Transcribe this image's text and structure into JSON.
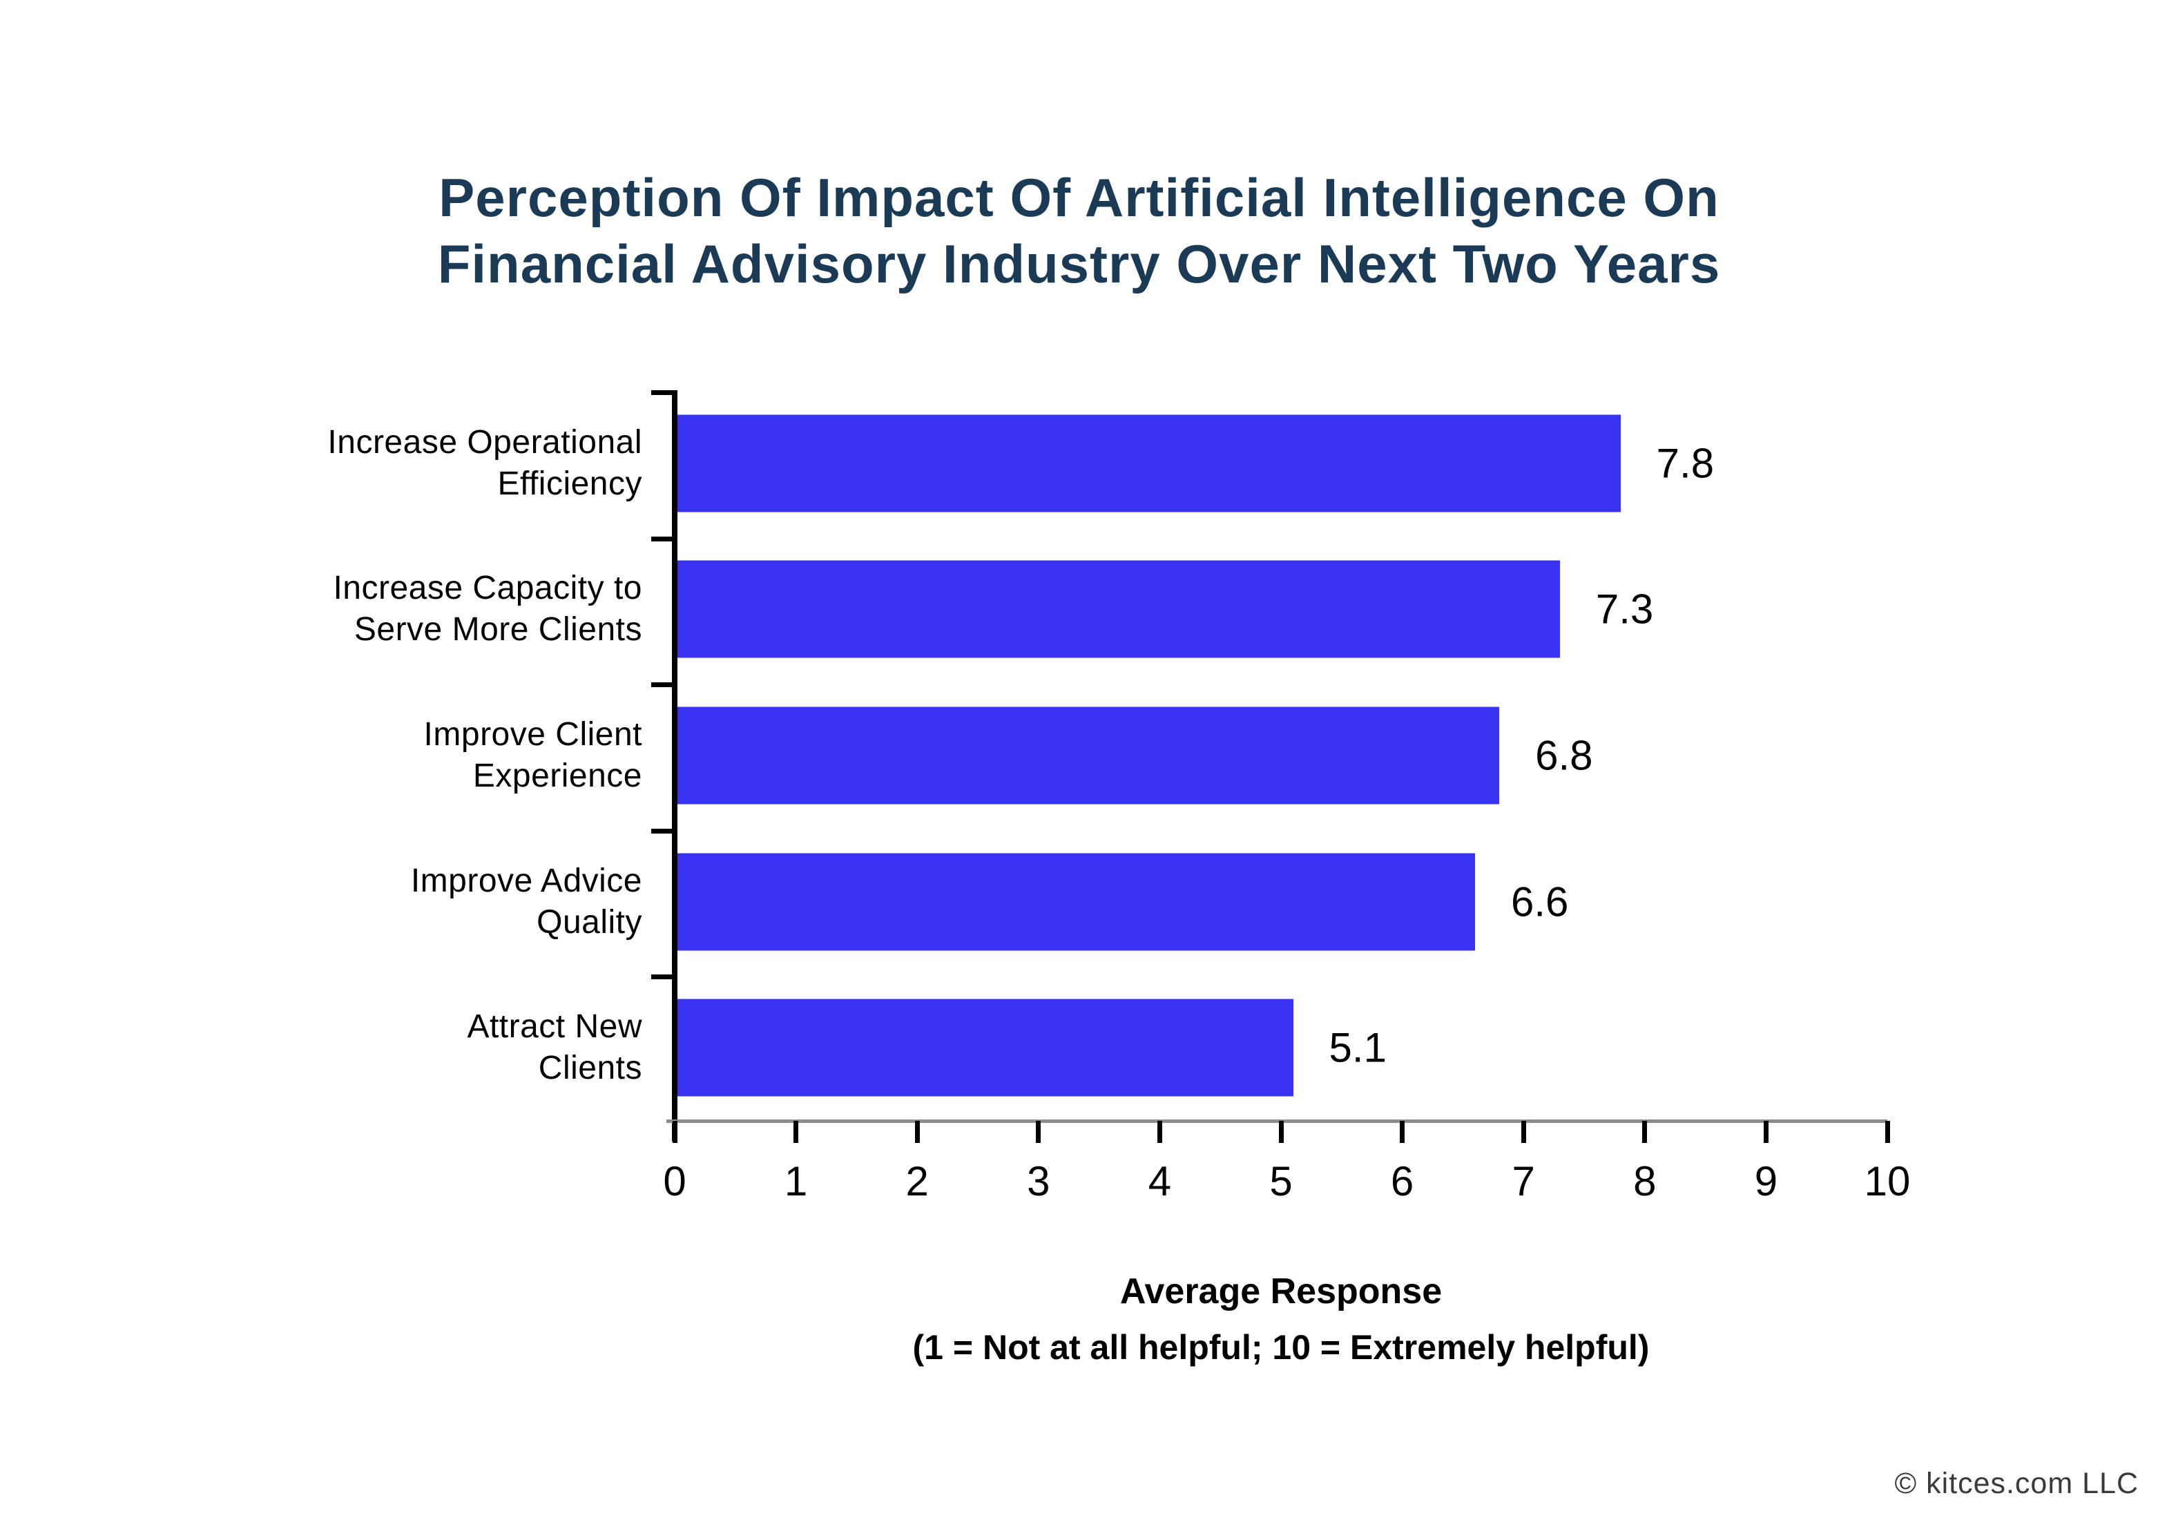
{
  "title": {
    "line1": "Perception Of Impact Of Artificial Intelligence On",
    "line2": "Financial Advisory Industry Over Next Two Years",
    "color": "#1a3a55"
  },
  "chart_data": {
    "type": "bar",
    "orientation": "horizontal",
    "title": "Perception Of Impact Of Artificial Intelligence On Financial Advisory Industry Over Next Two Years",
    "categories": [
      "Increase Operational Efficiency",
      "Increase Capacity to Serve More Clients",
      "Improve Client Experience",
      "Improve Advice Quality",
      "Attract New Clients"
    ],
    "category_lines": [
      [
        "Increase Operational",
        "Efficiency"
      ],
      [
        "Increase Capacity to",
        "Serve More Clients"
      ],
      [
        "Improve Client",
        "Experience"
      ],
      [
        "Improve Advice",
        "Quality"
      ],
      [
        "Attract New",
        "Clients"
      ]
    ],
    "values": [
      7.8,
      7.3,
      6.8,
      6.6,
      5.1
    ],
    "value_labels": [
      "7.8",
      "7.3",
      "6.8",
      "6.6",
      "5.1"
    ],
    "xlim": [
      0,
      10
    ],
    "xticks": [
      "0",
      "1",
      "2",
      "3",
      "4",
      "5",
      "6",
      "7",
      "8",
      "9",
      "10"
    ],
    "xlabel": "Average Response",
    "xlabel_note": "(1 = Not at all helpful; 10 = Extremely helpful)",
    "grid": false,
    "legend": "none",
    "bar_color": "#3833f3",
    "axis_line_color": "#8c8c8c",
    "tick_color": "#000000"
  },
  "footer": {
    "copyright": "© kitces.com LLC"
  }
}
